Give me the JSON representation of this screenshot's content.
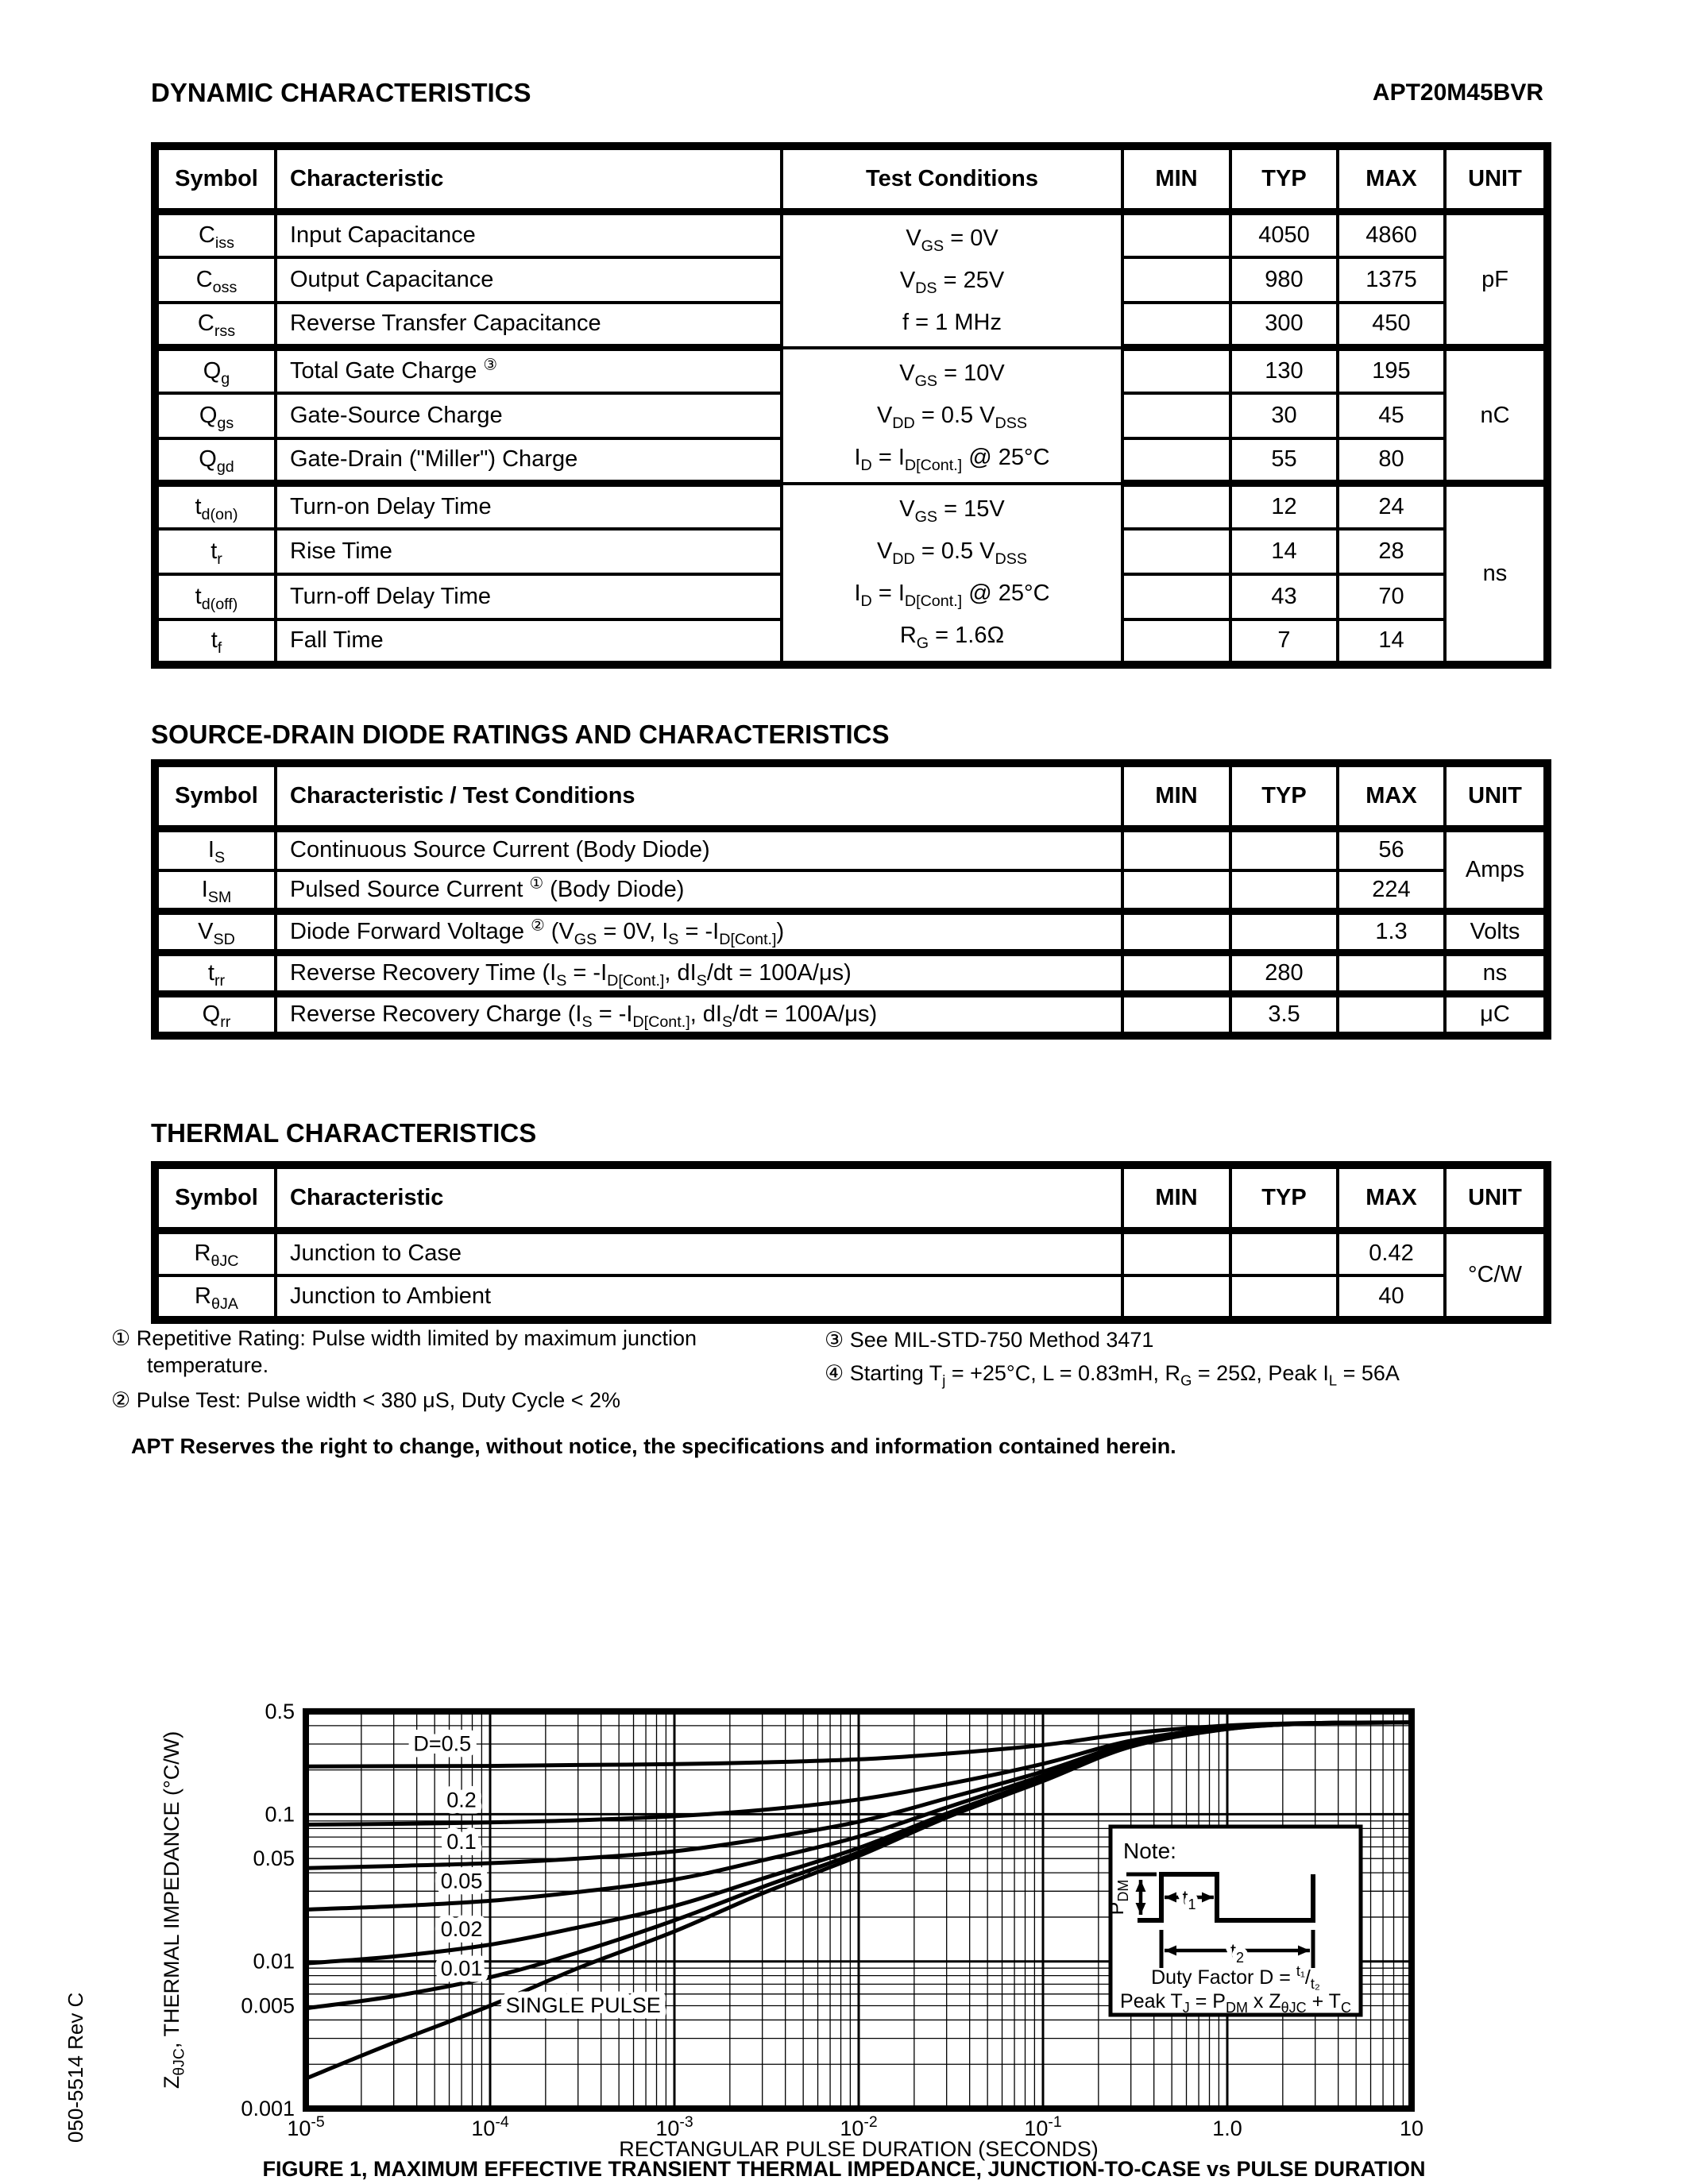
{
  "page": {
    "part_number": "APT20M45BVR",
    "rev_label": "050-5514 Rev C",
    "disclaimer": "APT Reserves the right to change, without notice, the specifications and information contained herein."
  },
  "dynamic_table": {
    "title": "DYNAMIC CHARACTERISTICS",
    "headers": {
      "symbol": "Symbol",
      "characteristic": "Characteristic",
      "test_conditions": "Test Conditions",
      "min": "MIN",
      "typ": "TYP",
      "max": "MAX",
      "unit": "UNIT"
    },
    "condition_groups": [
      "V_{GS} = 0V\nV_{DS} = 25V\nf = 1 MHz",
      "V_{GS} = 10V\nV_{DD} = 0.5 V_{DSS}\nI_{D} = I_{D[Cont.]} @ 25°C",
      "V_{GS} = 15V\nV_{DD} = 0.5 V_{DSS}\nI_{D} = I_{D[Cont.]} @ 25°C\nR_{G} = 1.6Ω"
    ],
    "unit_groups": [
      "pF",
      "nC",
      "ns"
    ],
    "rows": [
      {
        "symbol": "C_{iss}",
        "characteristic": "Input Capacitance",
        "min": "",
        "typ": "4050",
        "max": "4860"
      },
      {
        "symbol": "C_{oss}",
        "characteristic": "Output Capacitance",
        "min": "",
        "typ": "980",
        "max": "1375"
      },
      {
        "symbol": "C_{rss}",
        "characteristic": "Reverse Transfer Capacitance",
        "min": "",
        "typ": "300",
        "max": "450"
      },
      {
        "symbol": "Q_{g}",
        "characteristic": "Total Gate Charge ^{③}",
        "min": "",
        "typ": "130",
        "max": "195"
      },
      {
        "symbol": "Q_{gs}",
        "characteristic": "Gate-Source Charge",
        "min": "",
        "typ": "30",
        "max": "45"
      },
      {
        "symbol": "Q_{gd}",
        "characteristic": "Gate-Drain (\"Miller\") Charge",
        "min": "",
        "typ": "55",
        "max": "80"
      },
      {
        "symbol": "t_{d(on)}",
        "characteristic": "Turn-on Delay Time",
        "min": "",
        "typ": "12",
        "max": "24"
      },
      {
        "symbol": "t_{r}",
        "characteristic": "Rise Time",
        "min": "",
        "typ": "14",
        "max": "28"
      },
      {
        "symbol": "t_{d(off)}",
        "characteristic": "Turn-off Delay Time",
        "min": "",
        "typ": "43",
        "max": "70"
      },
      {
        "symbol": "t_{f}",
        "characteristic": "Fall Time",
        "min": "",
        "typ": "7",
        "max": "14"
      }
    ]
  },
  "diode_table": {
    "title": "SOURCE-DRAIN DIODE RATINGS AND CHARACTERISTICS",
    "headers": {
      "symbol": "Symbol",
      "characteristic": "Characteristic / Test Conditions",
      "min": "MIN",
      "typ": "TYP",
      "max": "MAX",
      "unit": "UNIT"
    },
    "unit_group": "Amps",
    "rows": [
      {
        "symbol": "I_{S}",
        "characteristic": "Continuous Source Current  (Body Diode)",
        "min": "",
        "typ": "",
        "max": "56",
        "unit": ""
      },
      {
        "symbol": "I_{SM}",
        "characteristic": "Pulsed Source Current ^{①} (Body Diode)",
        "min": "",
        "typ": "",
        "max": "224",
        "unit": ""
      },
      {
        "symbol": "V_{SD}",
        "characteristic": "Diode Forward Voltage ^{②} (V_{GS} = 0V, I_{S} = -I_{D[Cont.]})",
        "min": "",
        "typ": "",
        "max": "1.3",
        "unit": "Volts"
      },
      {
        "symbol": "t_{rr}",
        "characteristic": "Reverse Recovery Time  (I_{S} = -I_{D[Cont.]}, dI_{S}/dt = 100A/μs)",
        "min": "",
        "typ": "280",
        "max": "",
        "unit": "ns"
      },
      {
        "symbol": "Q_{rr}",
        "characteristic": "Reverse Recovery Charge  (I_{S} = -I_{D[Cont.]}, dI_{S}/dt = 100A/μs)",
        "min": "",
        "typ": "3.5",
        "max": "",
        "unit": "μC"
      }
    ]
  },
  "thermal_table": {
    "title": "THERMAL CHARACTERISTICS",
    "headers": {
      "symbol": "Symbol",
      "characteristic": "Characteristic",
      "min": "MIN",
      "typ": "TYP",
      "max": "MAX",
      "unit": "UNIT"
    },
    "unit_group": "°C/W",
    "rows": [
      {
        "symbol": "R_{θJC}",
        "characteristic": "Junction to Case",
        "min": "",
        "typ": "",
        "max": "0.42"
      },
      {
        "symbol": "R_{θJA}",
        "characteristic": "Junction to Ambient",
        "min": "",
        "typ": "",
        "max": "40"
      }
    ]
  },
  "footnotes": {
    "n1a": "① Repetitive Rating: Pulse width limited by maximum junction",
    "n1b": "temperature.",
    "n2": "② Pulse Test: Pulse width < 380 μS, Duty Cycle < 2%",
    "n3": "③ See MIL-STD-750 Method 3471",
    "n4": "④ Starting T_{j} = +25°C, L = 0.83mH, R_{G} = 25Ω, Peak I_{L} = 56A"
  },
  "chart_data": {
    "type": "line",
    "title": "FIGURE 1, MAXIMUM EFFECTIVE TRANSIENT THERMAL IMPEDANCE, JUNCTION-TO-CASE vs PULSE DURATION",
    "xlabel": "RECTANGULAR PULSE DURATION (SECONDS)",
    "ylabel": "Z_{θJC}, THERMAL IMPEDANCE (°C/W)",
    "xscale": "log",
    "yscale": "log",
    "xlim": [
      1e-05,
      10
    ],
    "ylim": [
      0.001,
      0.5
    ],
    "grid": true,
    "x_ticks": [
      {
        "v": 1e-05,
        "label": "10^{-5}"
      },
      {
        "v": 0.0001,
        "label": "10^{-4}"
      },
      {
        "v": 0.001,
        "label": "10^{-3}"
      },
      {
        "v": 0.01,
        "label": "10^{-2}"
      },
      {
        "v": 0.1,
        "label": "10^{-1}"
      },
      {
        "v": 1,
        "label": "1.0"
      },
      {
        "v": 10,
        "label": "10"
      }
    ],
    "y_ticks": [
      {
        "v": 0.5,
        "label": "0.5"
      },
      {
        "v": 0.1,
        "label": "0.1"
      },
      {
        "v": 0.05,
        "label": "0.05"
      },
      {
        "v": 0.01,
        "label": "0.01"
      },
      {
        "v": 0.005,
        "label": "0.005"
      },
      {
        "v": 0.001,
        "label": "0.001"
      }
    ],
    "x": [
      1e-05,
      3e-05,
      0.0001,
      0.0003,
      0.001,
      0.003,
      0.01,
      0.03,
      0.1,
      0.3,
      1,
      3,
      10
    ],
    "series": [
      {
        "name": "D=0.5",
        "duty": 0.5,
        "values": [
          0.211,
          0.212,
          0.213,
          0.216,
          0.219,
          0.225,
          0.236,
          0.258,
          0.295,
          0.355,
          0.4,
          0.417,
          0.42
        ],
        "label_at": [
          5.5e-05,
          0.27
        ]
      },
      {
        "name": "0.2",
        "duty": 0.2,
        "values": [
          0.085,
          0.086,
          0.088,
          0.091,
          0.097,
          0.107,
          0.126,
          0.16,
          0.22,
          0.316,
          0.388,
          0.416,
          0.42
        ],
        "label_at": [
          7e-05,
          0.112
        ]
      },
      {
        "name": "0.1",
        "duty": 0.1,
        "values": [
          0.043,
          0.0445,
          0.0465,
          0.05,
          0.056,
          0.068,
          0.089,
          0.128,
          0.195,
          0.303,
          0.384,
          0.416,
          0.42
        ],
        "label_at": [
          7e-05,
          0.058
        ]
      },
      {
        "name": "0.05",
        "duty": 0.05,
        "values": [
          0.0225,
          0.0237,
          0.0258,
          0.0296,
          0.036,
          0.0486,
          0.0704,
          0.111,
          0.183,
          0.297,
          0.382,
          0.415,
          0.42
        ],
        "label_at": [
          7e-05,
          0.0315
        ]
      },
      {
        "name": "0.02",
        "duty": 0.02,
        "values": [
          0.0097,
          0.0108,
          0.013,
          0.017,
          0.0238,
          0.0365,
          0.059,
          0.101,
          0.174,
          0.292,
          0.381,
          0.415,
          0.42
        ],
        "label_at": [
          7e-05,
          0.0148
        ]
      },
      {
        "name": "0.01",
        "duty": 0.01,
        "values": [
          0.0048,
          0.0058,
          0.0078,
          0.0115,
          0.019,
          0.032,
          0.055,
          0.097,
          0.171,
          0.29,
          0.38,
          0.415,
          0.42
        ],
        "label_at": [
          7e-05,
          0.008
        ]
      },
      {
        "name": "SINGLE PULSE",
        "duty": 0,
        "values": [
          0.0016,
          0.0028,
          0.005,
          0.009,
          0.016,
          0.029,
          0.052,
          0.095,
          0.168,
          0.288,
          0.379,
          0.414,
          0.42
        ],
        "label_at": [
          0.00032,
          0.0045
        ]
      }
    ],
    "note": {
      "heading": "Note:",
      "pdm_label": "P_{DM}",
      "t1_label": "t_{1}",
      "t2_label": "t_{2}",
      "duty_text": "Duty Factor  D = ^{t₁}/_{t₂}",
      "peak_text": "Peak T_{J} = P_{DM} x Z_{θJC} + T_{C}"
    }
  }
}
